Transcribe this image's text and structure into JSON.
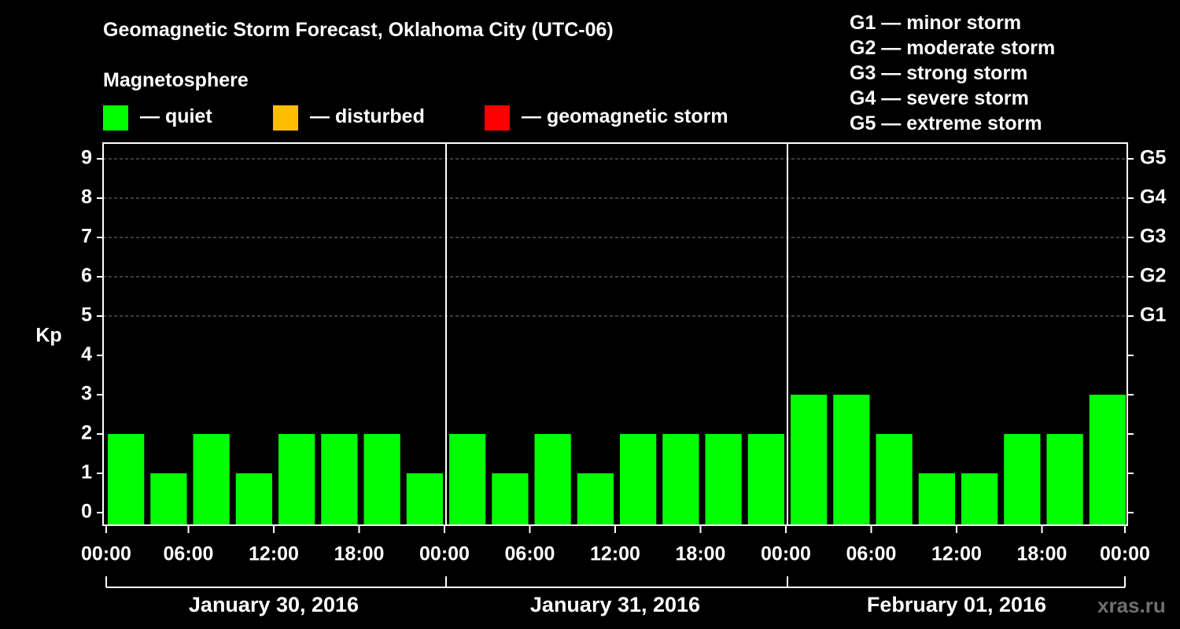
{
  "title": "Geomagnetic Storm Forecast, Oklahoma City (UTC-06)",
  "magnetosphere": {
    "title": "Magnetosphere",
    "legend": [
      {
        "label": "— quiet",
        "color": "#00ff00"
      },
      {
        "label": "— disturbed",
        "color": "#ffbf00"
      },
      {
        "label": "— geomagnetic storm",
        "color": "#ff0000"
      }
    ]
  },
  "storm_levels": [
    {
      "label": "G1 — minor storm"
    },
    {
      "label": "G2 — moderate storm"
    },
    {
      "label": "G3 — strong storm"
    },
    {
      "label": "G4 — severe storm"
    },
    {
      "label": "G5 — extreme storm"
    }
  ],
  "watermark": "xras.ru",
  "chart_data": {
    "type": "bar",
    "ylabel": "Kp",
    "ylim": [
      0,
      9
    ],
    "yticks": [
      "0",
      "1",
      "2",
      "3",
      "4",
      "5",
      "6",
      "7",
      "8",
      "9"
    ],
    "right_ticks": [
      {
        "kp": 5,
        "label": "G1"
      },
      {
        "kp": 6,
        "label": "G2"
      },
      {
        "kp": 7,
        "label": "G3"
      },
      {
        "kp": 8,
        "label": "G4"
      },
      {
        "kp": 9,
        "label": "G5"
      }
    ],
    "time_labels": [
      "00:00",
      "06:00",
      "12:00",
      "18:00",
      "00:00",
      "06:00",
      "12:00",
      "18:00",
      "00:00",
      "06:00",
      "12:00",
      "18:00",
      "00:00"
    ],
    "days": [
      "January 30, 2016",
      "January 31, 2016",
      "February 01, 2016"
    ],
    "interval_hours": 3,
    "values": [
      2,
      1,
      2,
      1,
      2,
      2,
      2,
      1,
      2,
      1,
      2,
      1,
      2,
      2,
      2,
      2,
      3,
      3,
      2,
      1,
      1,
      2,
      2,
      3
    ],
    "bar_color": "#00ff00",
    "grid_lines_at": [
      5,
      6,
      7,
      8,
      9
    ]
  }
}
